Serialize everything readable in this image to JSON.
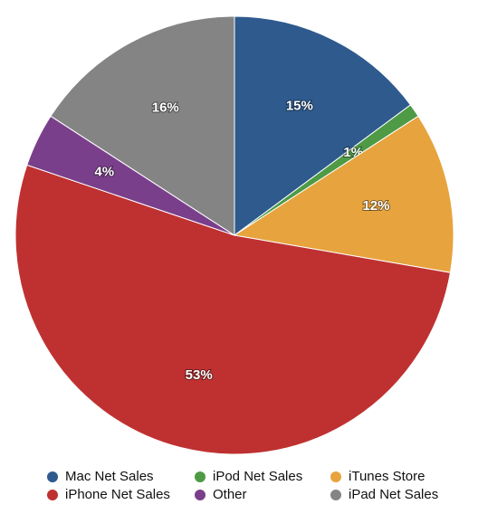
{
  "chart_data": {
    "type": "pie",
    "categories": [
      "Mac Net Sales",
      "iPod Net Sales",
      "iTunes Store",
      "iPhone Net Sales",
      "Other",
      "iPad Net Sales"
    ],
    "values": [
      15,
      1,
      12,
      53,
      4,
      16
    ],
    "value_labels": [
      "15%",
      "1%",
      "12%",
      "53%",
      "4%",
      "16%"
    ],
    "colors": [
      "#2e5a8e",
      "#4e9a45",
      "#e7a33d",
      "#bf3131",
      "#7a3f8b",
      "#848484"
    ],
    "legend": "bottom"
  }
}
